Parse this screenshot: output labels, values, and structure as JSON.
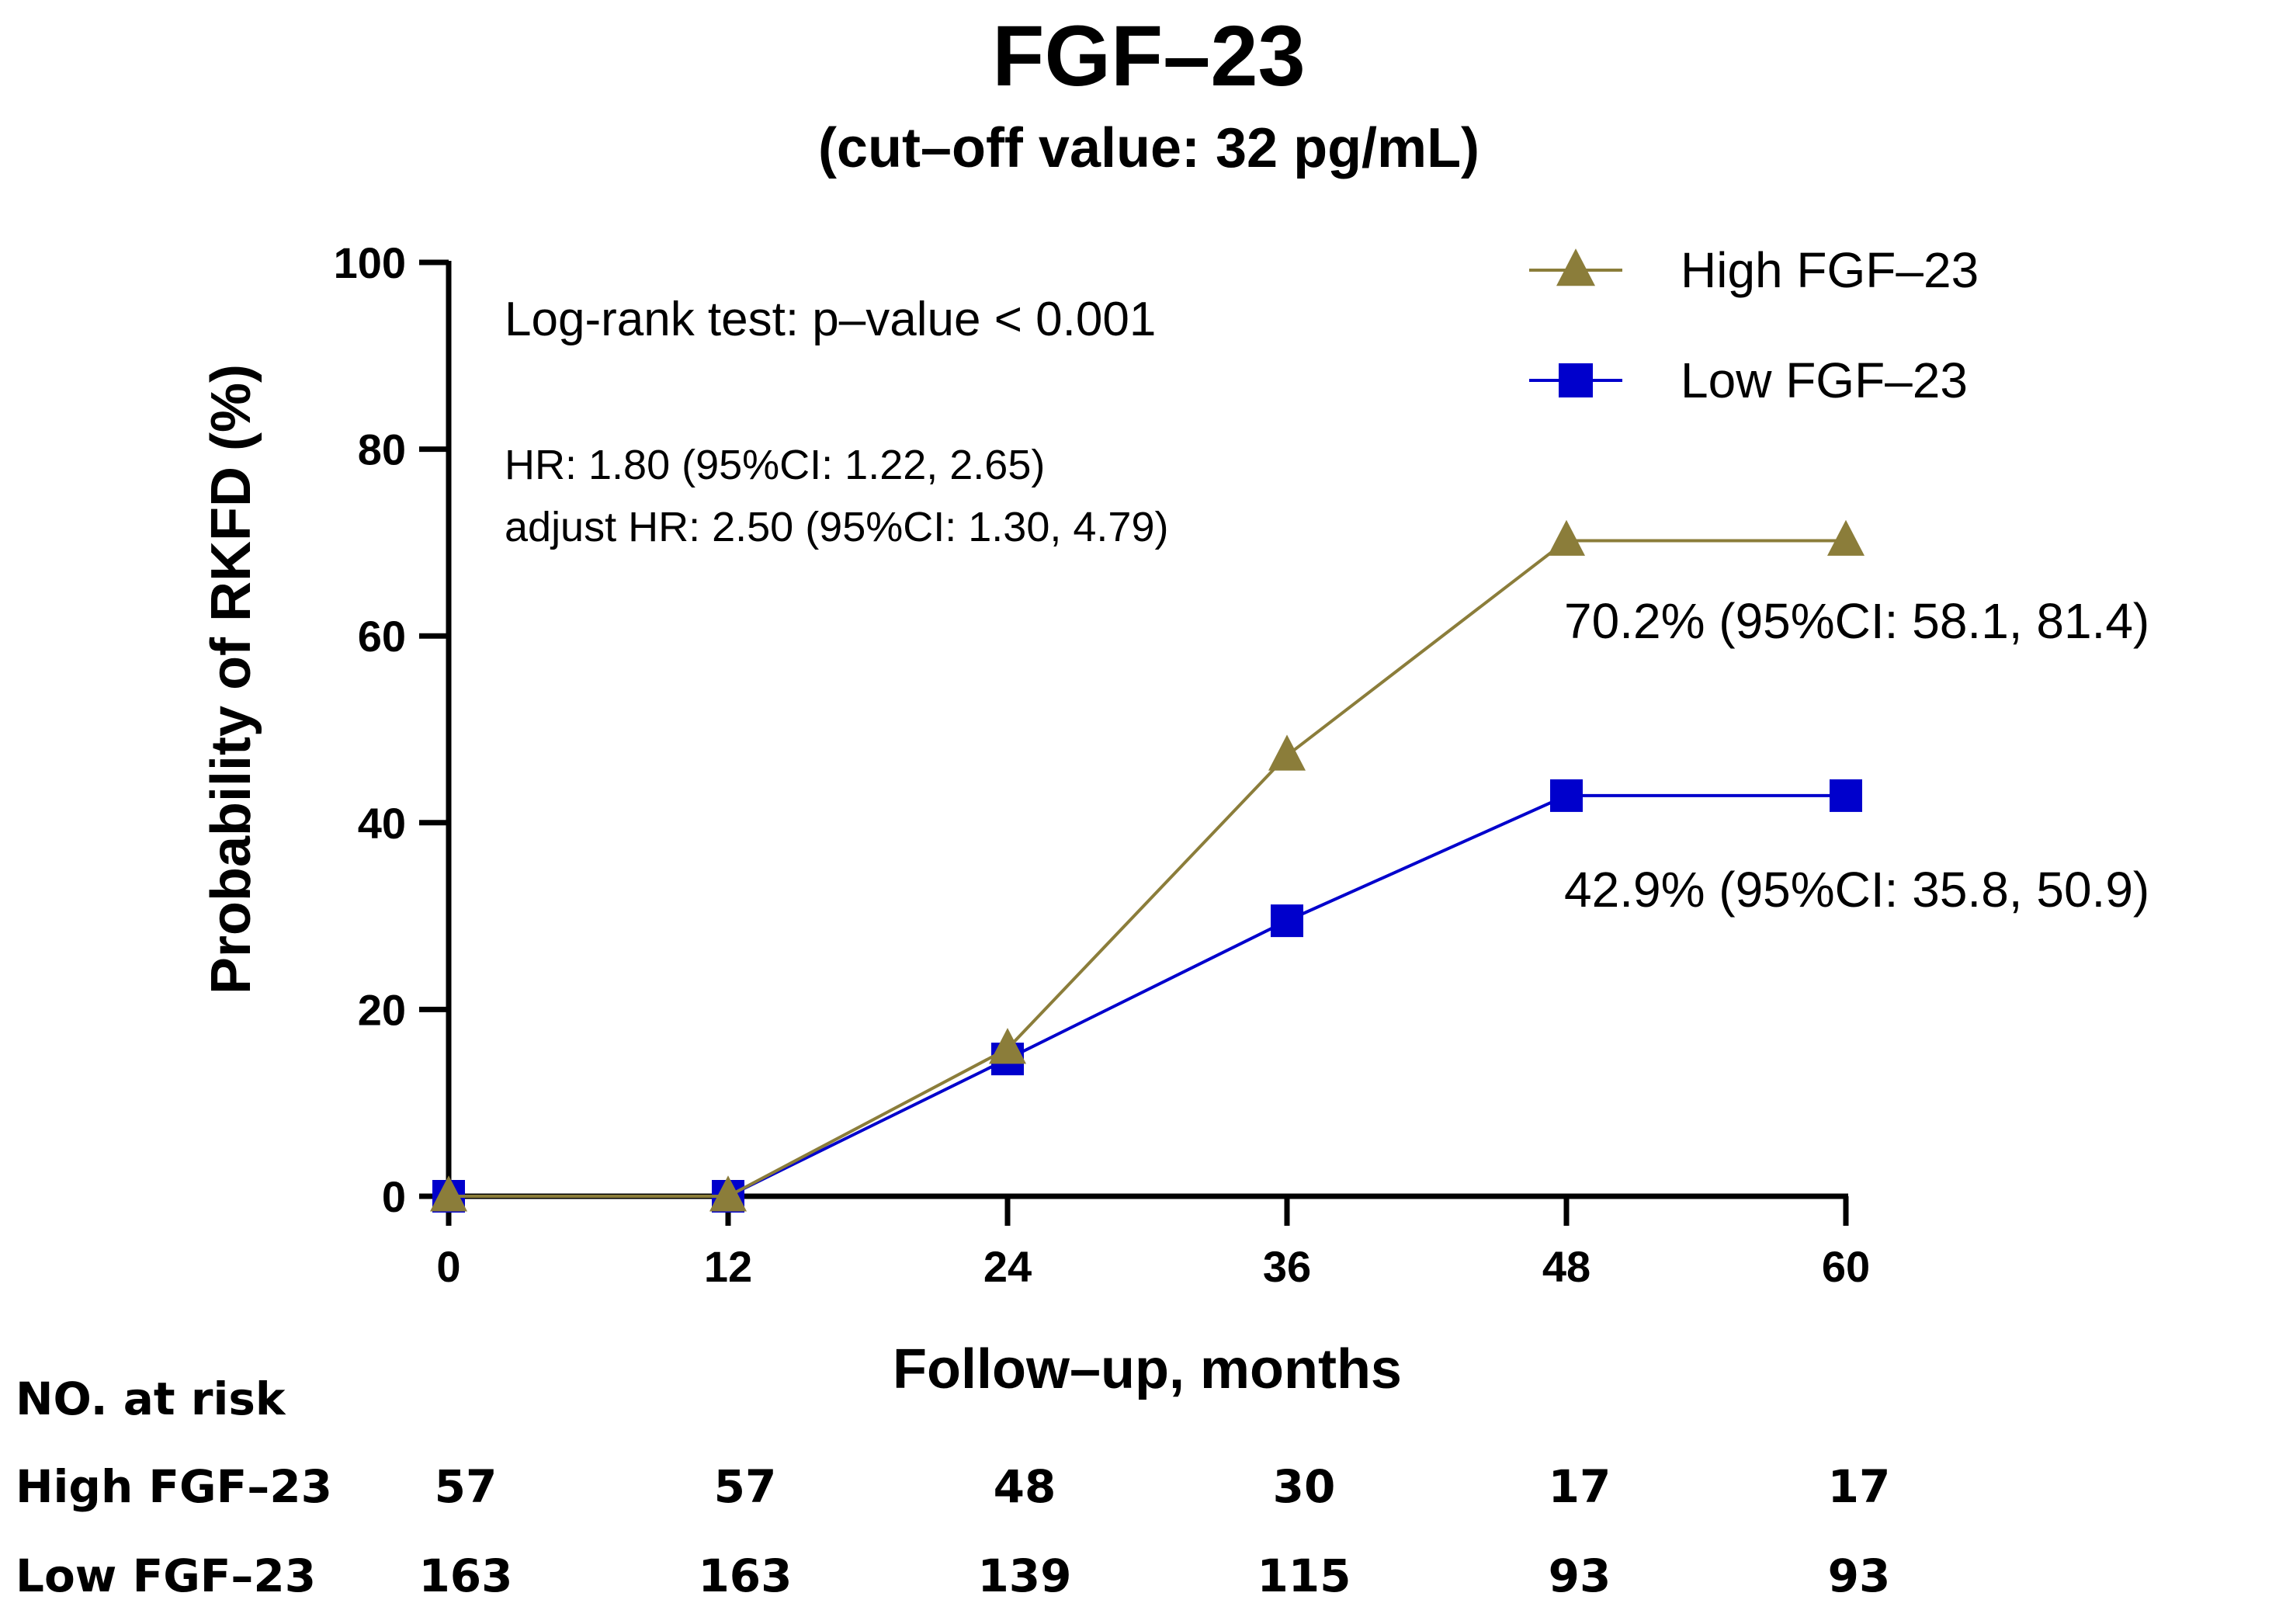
{
  "chart_data": {
    "type": "line",
    "title": "FGF–23",
    "subtitle": "(cut–off value: 32 pg/mL)",
    "xlabel": "Follow–up, months",
    "ylabel": "Probability of RKFD (%)",
    "x": [
      0,
      12,
      24,
      36,
      48,
      60
    ],
    "xlim": [
      0,
      60
    ],
    "ylim": [
      0,
      100
    ],
    "x_ticks": [
      "0",
      "12",
      "24",
      "36",
      "48",
      "60"
    ],
    "y_ticks": [
      "0",
      "20",
      "40",
      "60",
      "80",
      "100"
    ],
    "grid": false,
    "legend_position": "top-right",
    "series": [
      {
        "name": "High FGF–23",
        "values": [
          0,
          0,
          15.8,
          47.2,
          70.2,
          70.2
        ],
        "color": "#8B7D3A",
        "marker": "triangle"
      },
      {
        "name": "Low FGF–23",
        "values": [
          0,
          0,
          14.7,
          29.5,
          42.9,
          42.9
        ],
        "color": "#0000CC",
        "marker": "square"
      }
    ],
    "annotations": {
      "logrank": "Log-rank test: p–value < 0.001",
      "hr": "HR: 1.80 (95%CI: 1.22, 2.65)",
      "adjust_hr": "adjust HR: 2.50 (95%CI: 1.30, 4.79)",
      "high_end": "70.2% (95%CI: 58.1, 81.4)",
      "low_end": "42.9% (95%CI: 35.8, 50.9)"
    },
    "risk_table": {
      "header": "NO. at risk",
      "rows": [
        {
          "label": "High FGF–23",
          "values": [
            "57",
            "57",
            "48",
            "30",
            "17",
            "17"
          ]
        },
        {
          "label": "Low FGF–23",
          "values": [
            "163",
            "163",
            "139",
            "115",
            "93",
            "93"
          ]
        }
      ]
    }
  }
}
